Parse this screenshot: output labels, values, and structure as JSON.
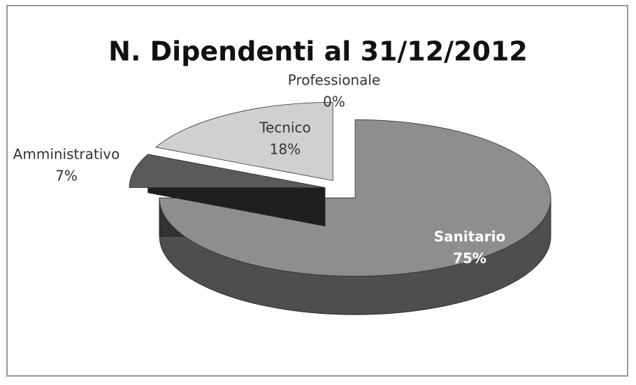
{
  "chart_data": {
    "type": "pie",
    "title": "N. Dipendenti al 31/12/2012",
    "categories": [
      "Sanitario",
      "Amministrativo",
      "Tecnico",
      "Professionale"
    ],
    "values": [
      75,
      7,
      18,
      0
    ],
    "value_labels": [
      "75%",
      "7%",
      "18%",
      "0%"
    ],
    "colors": [
      "#8e8e8e",
      "#5a5a5a",
      "#d0d0d0",
      "#ffffff"
    ]
  }
}
